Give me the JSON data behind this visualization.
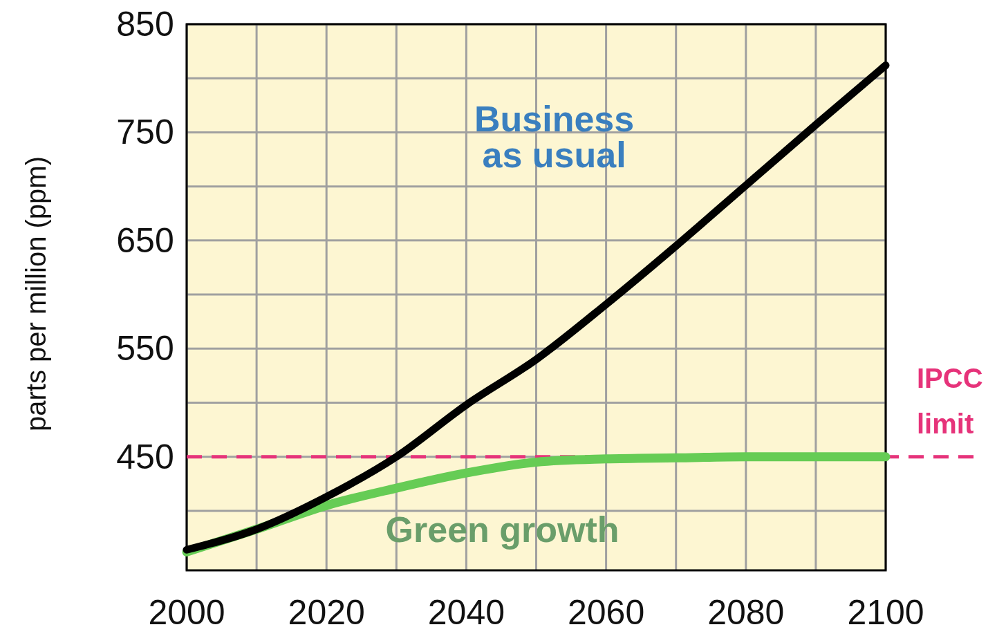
{
  "chart_data": {
    "type": "line",
    "ylabel": "parts per million (ppm)",
    "x": [
      2000,
      2010,
      2020,
      2030,
      2040,
      2050,
      2060,
      2070,
      2080,
      2090,
      2100
    ],
    "xlim": [
      2000,
      2100
    ],
    "xticks": [
      2000,
      {
        "value": 2010,
        "label": null
      },
      2020,
      {
        "value": 2030,
        "label": null
      },
      2040,
      {
        "value": 2050,
        "label": null
      },
      2060,
      {
        "value": 2070,
        "label": null
      },
      2080,
      {
        "value": 2090,
        "label": null
      },
      2100
    ],
    "ylim": [
      345,
      850
    ],
    "yticks": [
      {
        "value": 400,
        "label": null
      },
      450,
      {
        "value": 500,
        "label": null
      },
      550,
      {
        "value": 600,
        "label": null
      },
      650,
      {
        "value": 700,
        "label": null
      },
      750,
      {
        "value": 800,
        "label": null
      },
      850
    ],
    "grid": true,
    "line_style": "solid",
    "series": [
      {
        "name": "Business as usual",
        "color": "#000000",
        "values": [
          364,
          383,
          413,
          450,
          498,
          540,
          591,
          645,
          701,
          757,
          812
        ]
      },
      {
        "name": "Green growth",
        "color": "#66cc55",
        "values": [
          362,
          383,
          405,
          421,
          435,
          445,
          448,
          449,
          450,
          450,
          450
        ]
      }
    ],
    "ref_lines": [
      {
        "axis": "y",
        "value": 450,
        "label": "IPCC limit",
        "color": "#e6337a",
        "line_style": "dashed"
      }
    ]
  }
}
